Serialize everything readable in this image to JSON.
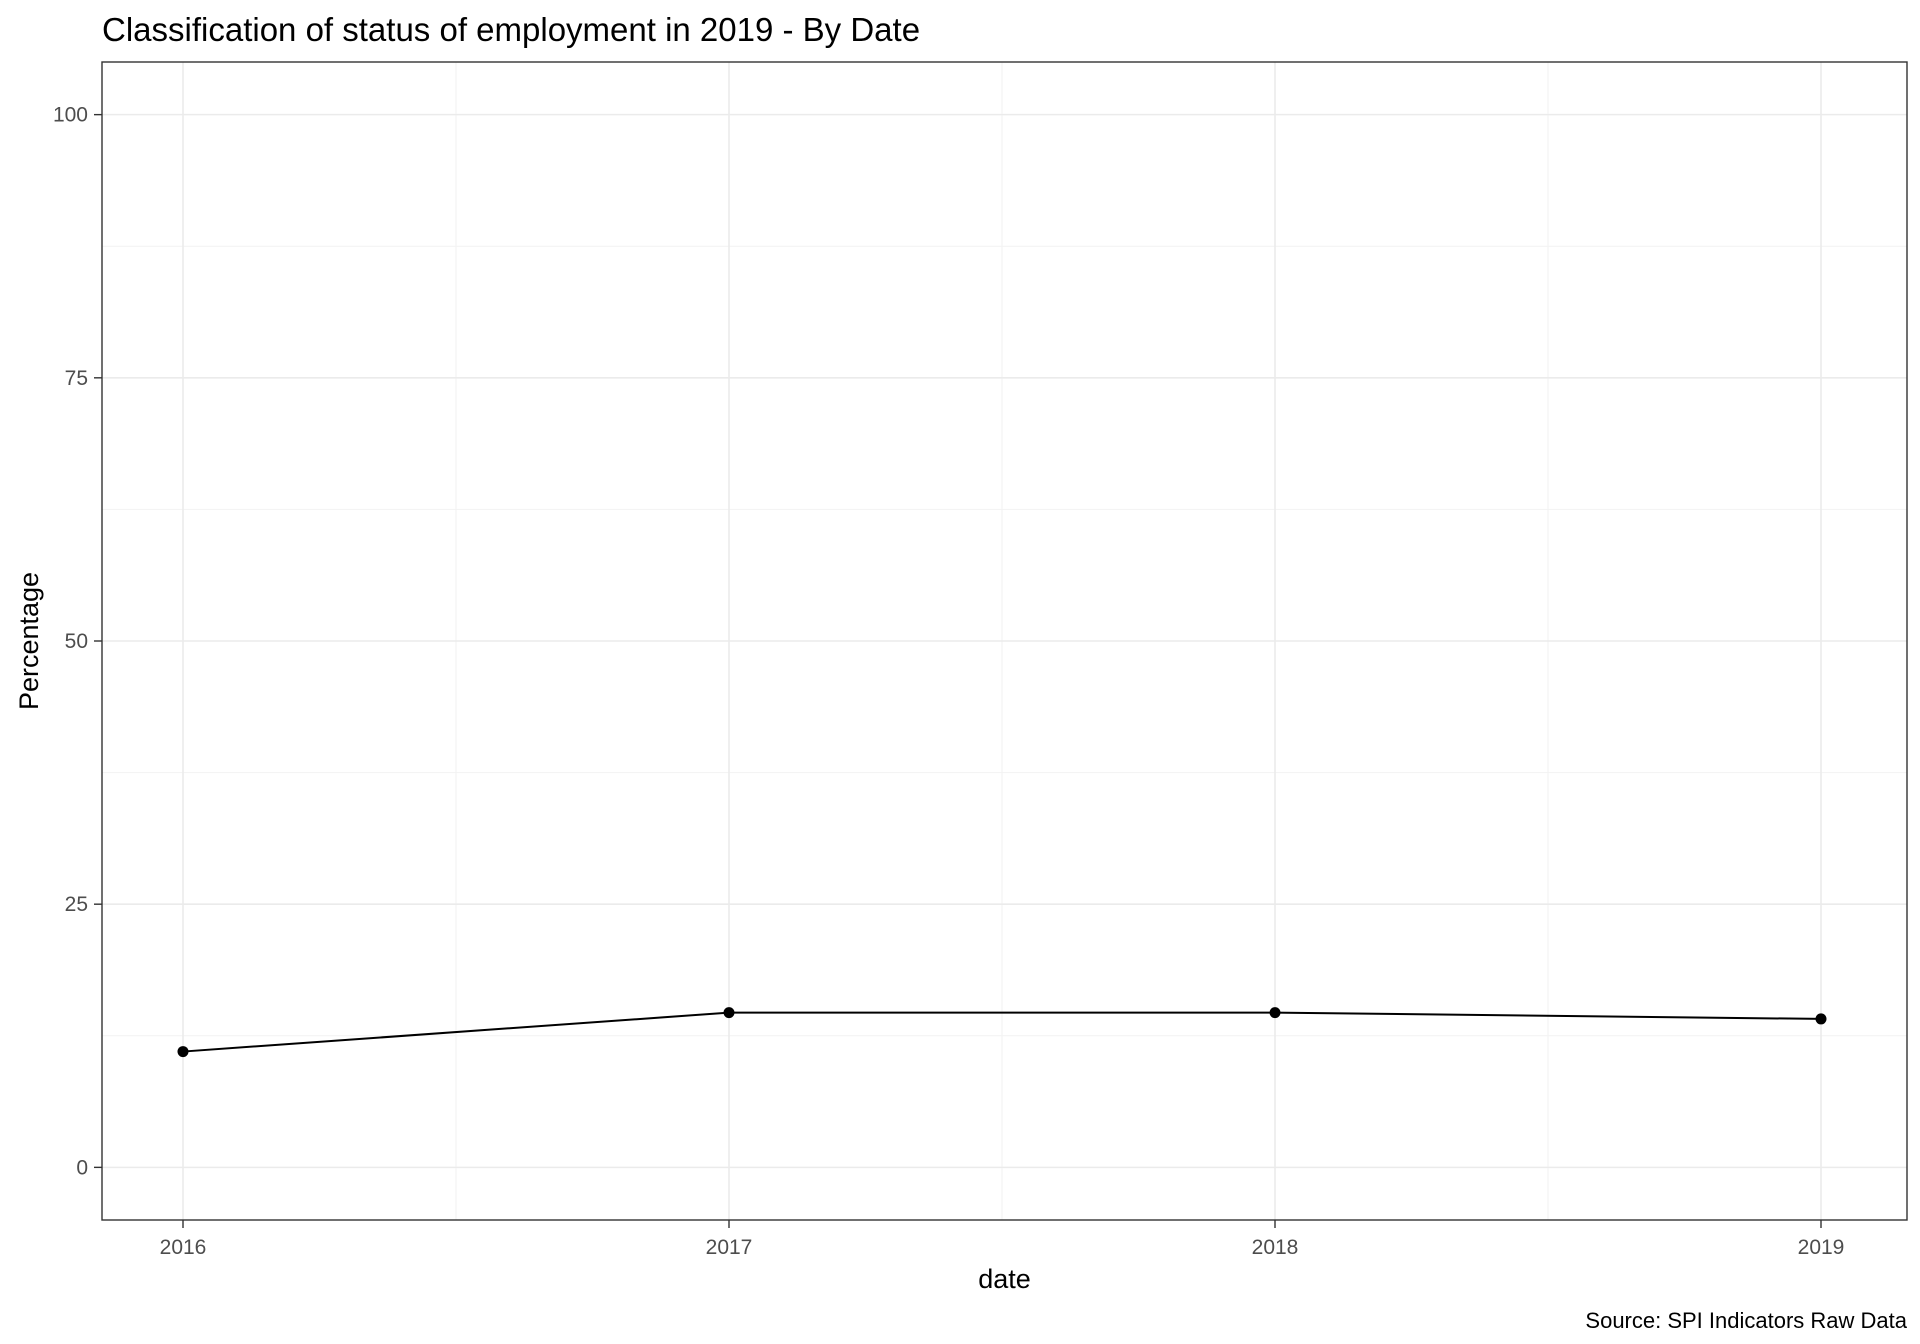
{
  "chart_data": {
    "type": "line",
    "title": "Classification of status of employment in 2019 - By Date",
    "xlabel": "date",
    "ylabel": "Percentage",
    "caption": "Source: SPI Indicators Raw Data",
    "x": [
      "2016",
      "2017",
      "2018",
      "2019"
    ],
    "series": [
      {
        "values": [
          11.0,
          14.7,
          14.7,
          14.1
        ]
      }
    ],
    "ylim": [
      -5,
      105
    ],
    "y_ticks": [
      0,
      25,
      50,
      75,
      100
    ],
    "y_tick_labels": [
      "0",
      "25",
      "50",
      "75",
      "100"
    ],
    "x_ticks": [
      "2016",
      "2017",
      "2018",
      "2019"
    ],
    "grid": true,
    "line_color": "#000000",
    "point_color": "#000000"
  }
}
